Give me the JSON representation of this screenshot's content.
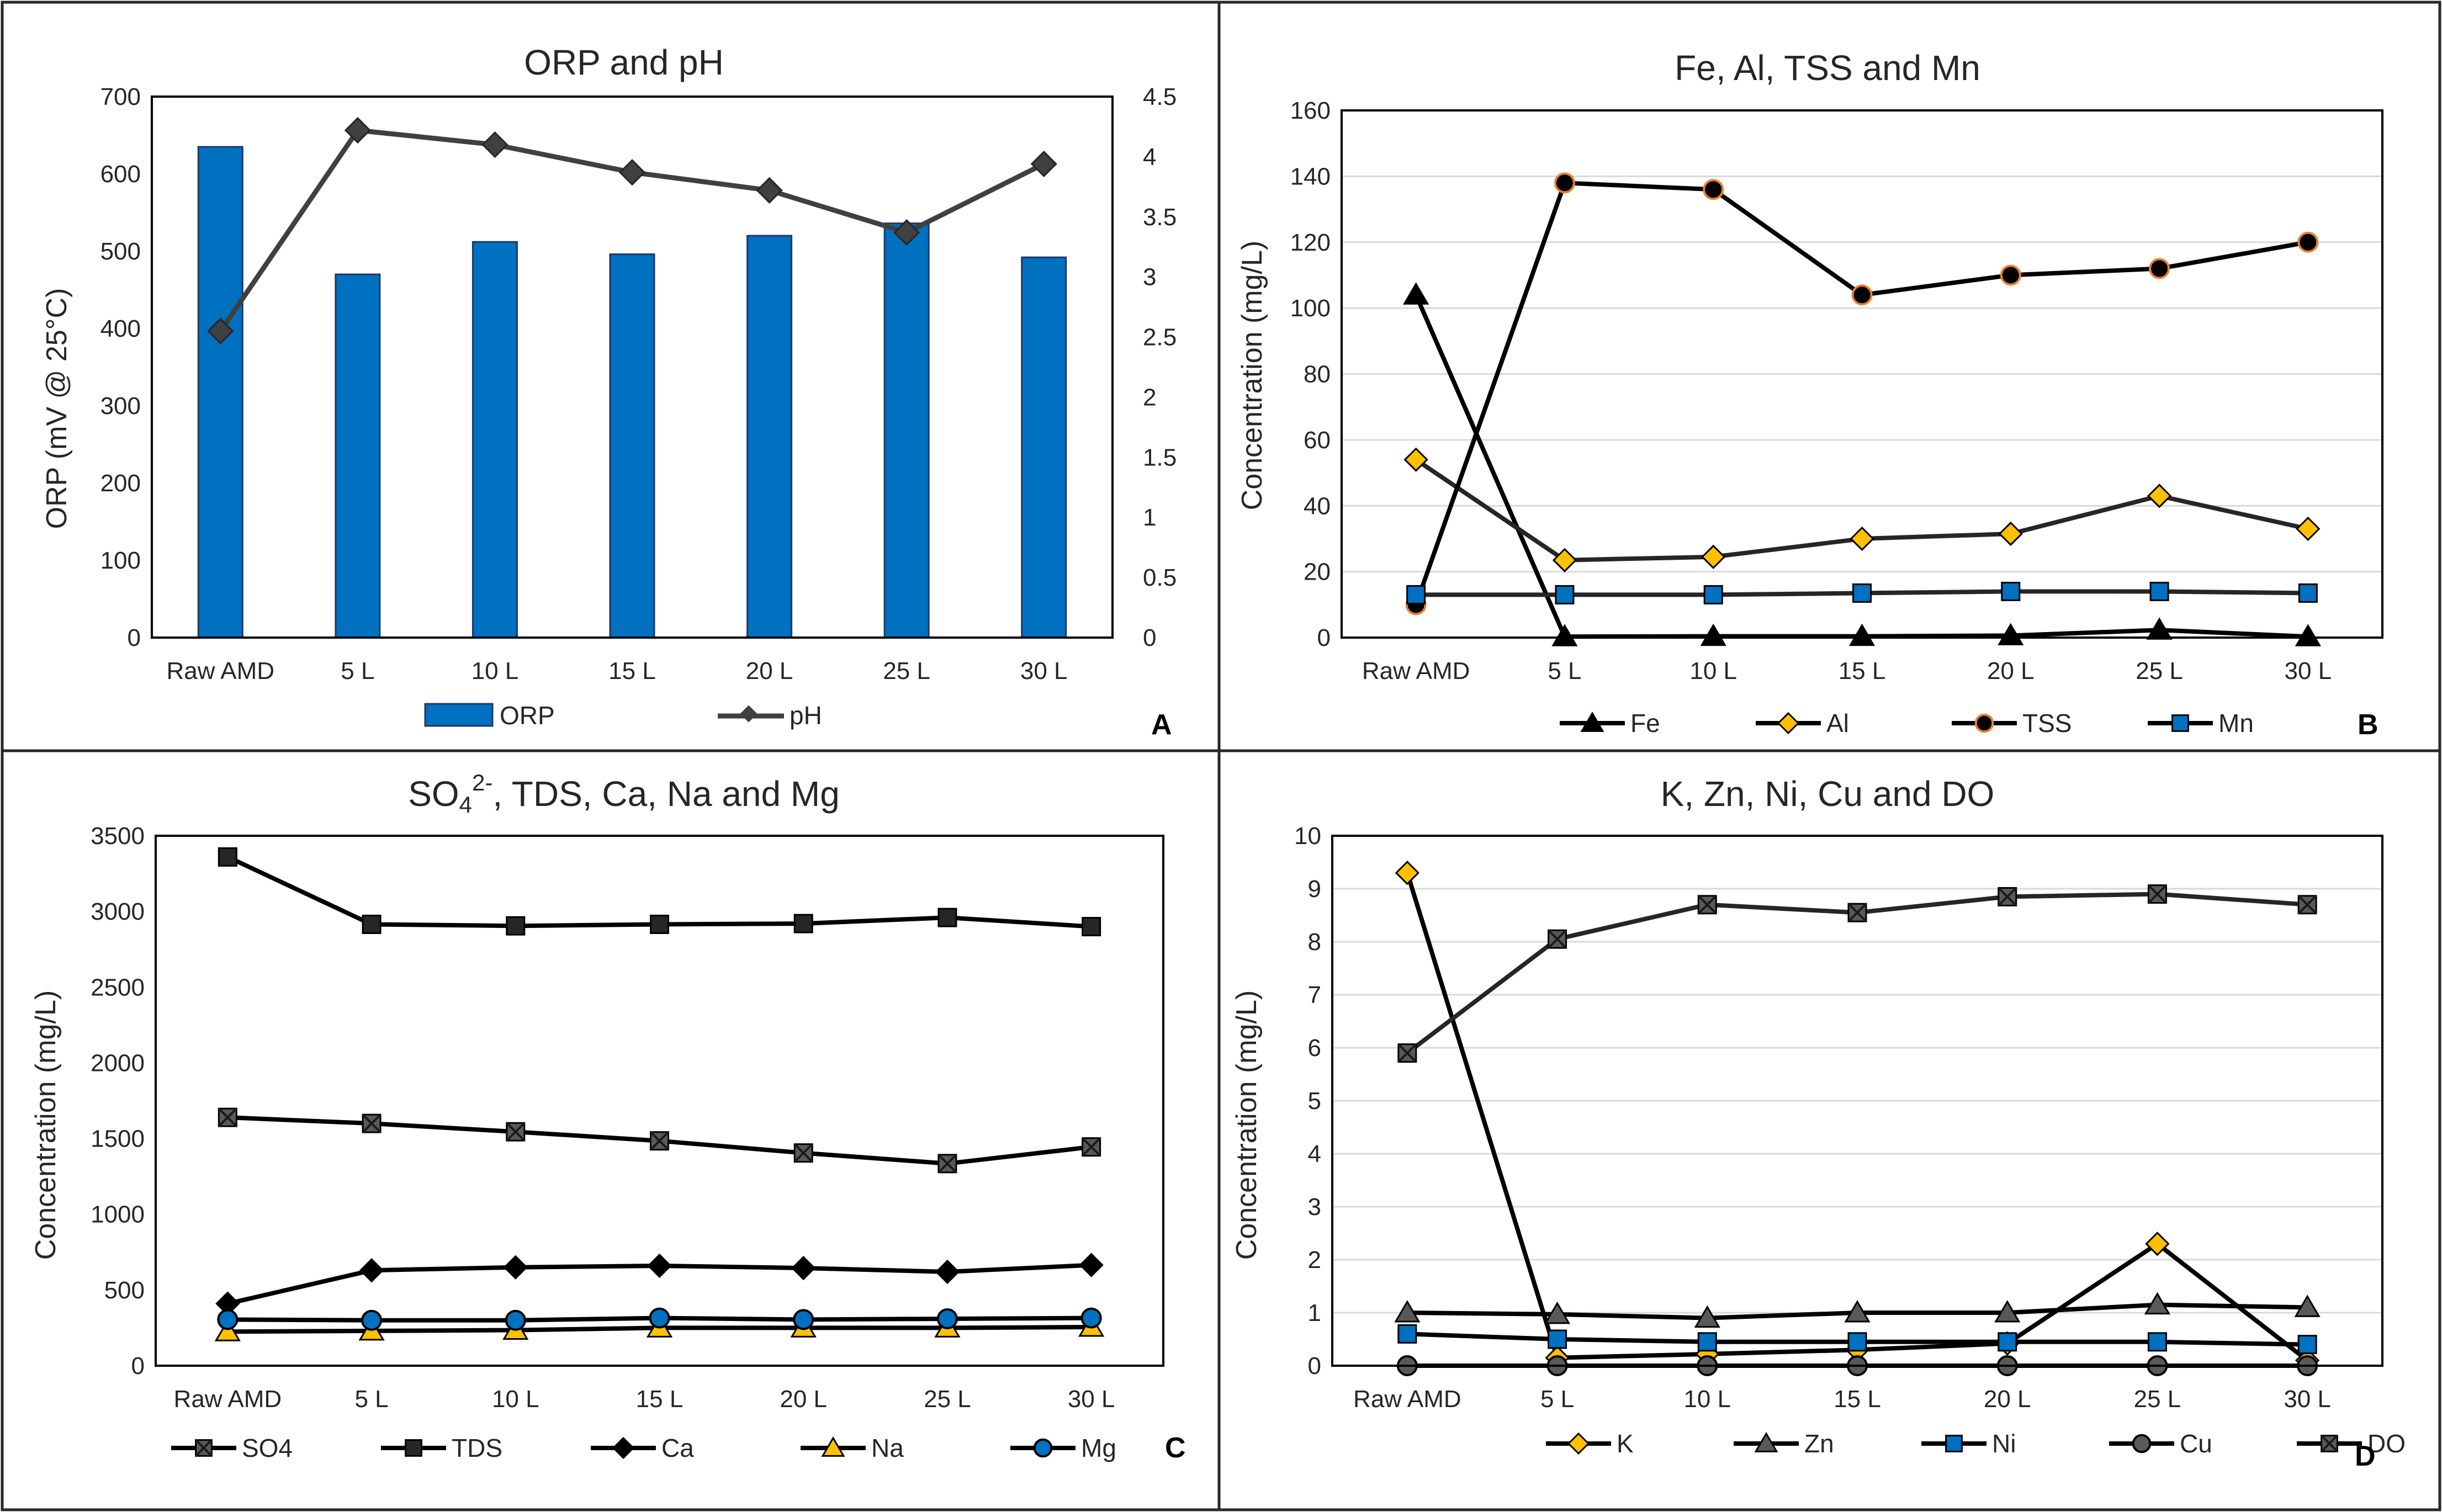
{
  "categories": [
    "Raw AMD",
    "5 L",
    "10 L",
    "15 L",
    "20 L",
    "25 L",
    "30 L"
  ],
  "chart_data": [
    {
      "panel": "A",
      "type": "bar+line",
      "title": "ORP and pH",
      "ylabel": "ORP (mV @ 25°C)",
      "ylim": [
        0,
        700
      ],
      "yticks": [
        0,
        100,
        200,
        300,
        400,
        500,
        600,
        700
      ],
      "y2lim": [
        0,
        4.5
      ],
      "y2ticks": [
        "0",
        "0.5",
        "1",
        "1.5",
        "2",
        "2.5",
        "3",
        "3.5",
        "4",
        "4.5"
      ],
      "legend_position": "bottom",
      "series": [
        {
          "name": "ORP",
          "kind": "bar",
          "axis": "left",
          "values": [
            635,
            470,
            512,
            496,
            520,
            536,
            492
          ]
        },
        {
          "name": "pH",
          "kind": "line",
          "axis": "right",
          "marker": "diamond",
          "values": [
            2.55,
            4.22,
            4.1,
            3.87,
            3.72,
            3.37,
            3.94
          ]
        }
      ]
    },
    {
      "panel": "B",
      "type": "line",
      "title": "Fe, Al, TSS and Mn",
      "ylabel": "Concentration (mg/L)",
      "ylim": [
        0,
        160
      ],
      "yticks": [
        0,
        20,
        40,
        60,
        80,
        100,
        120,
        140,
        160
      ],
      "legend_position": "bottom",
      "series": [
        {
          "name": "Fe",
          "marker": "triangle",
          "values": [
            104,
            0.3,
            0.4,
            0.4,
            0.6,
            2.3,
            0.3
          ]
        },
        {
          "name": "Al",
          "marker": "diamond",
          "values": [
            54,
            23.5,
            24.5,
            30,
            31.5,
            43,
            33
          ]
        },
        {
          "name": "TSS",
          "marker": "circle",
          "values": [
            10,
            138,
            136,
            104,
            110,
            112,
            120
          ]
        },
        {
          "name": "Mn",
          "marker": "square",
          "values": [
            13,
            13,
            13,
            13.5,
            14,
            14,
            13.5
          ]
        }
      ]
    },
    {
      "panel": "C",
      "type": "line",
      "title_main": "SO",
      "title_sub": "4",
      "title_sup": "2-",
      "title_rest": ", TDS, Ca, Na and Mg",
      "ylabel": "Concentration (mg/L)",
      "ylim": [
        0,
        3500
      ],
      "yticks": [
        0,
        500,
        1000,
        1500,
        2000,
        2500,
        3000,
        3500
      ],
      "legend_position": "bottom",
      "series": [
        {
          "name": "SO4",
          "marker": "xsquare",
          "values": [
            1640,
            1600,
            1545,
            1485,
            1405,
            1335,
            1445
          ]
        },
        {
          "name": "TDS",
          "marker": "square",
          "values": [
            3360,
            2915,
            2905,
            2915,
            2920,
            2960,
            2900
          ]
        },
        {
          "name": "Ca",
          "marker": "diamond",
          "values": [
            410,
            630,
            650,
            660,
            645,
            620,
            665
          ]
        },
        {
          "name": "Na",
          "marker": "triangle",
          "values": [
            225,
            230,
            235,
            250,
            250,
            250,
            255
          ]
        },
        {
          "name": "Mg",
          "marker": "circle",
          "values": [
            305,
            300,
            300,
            315,
            305,
            310,
            315
          ]
        }
      ]
    },
    {
      "panel": "D",
      "type": "line",
      "title": "K, Zn, Ni, Cu and DO",
      "ylabel": "Concentration (mg/L)",
      "ylim": [
        0,
        10
      ],
      "yticks": [
        0,
        1,
        2,
        3,
        4,
        5,
        6,
        7,
        8,
        9,
        10
      ],
      "legend_position": "bottom",
      "series": [
        {
          "name": "K",
          "marker": "diamond",
          "values": [
            9.3,
            0.15,
            0.22,
            0.3,
            0.42,
            2.3,
            0.1
          ]
        },
        {
          "name": "Zn",
          "marker": "triangle",
          "values": [
            1.0,
            0.97,
            0.9,
            1.0,
            1.0,
            1.15,
            1.1
          ]
        },
        {
          "name": "Ni",
          "marker": "square",
          "values": [
            0.6,
            0.5,
            0.45,
            0.45,
            0.45,
            0.45,
            0.4
          ]
        },
        {
          "name": "Cu",
          "marker": "circle",
          "values": [
            0.0,
            0.0,
            0.0,
            0.0,
            0.0,
            0.0,
            0.0
          ]
        },
        {
          "name": "DO",
          "marker": "xsquare",
          "values": [
            5.9,
            8.05,
            8.7,
            8.55,
            8.85,
            8.9,
            8.7
          ]
        }
      ]
    }
  ],
  "colors": {
    "bar_fill": "#0070c0",
    "bar_stroke": "#1f3864",
    "ph_line": "#404040",
    "line": "#000000",
    "grid": "#d9d9d9",
    "gold": "#ffc000",
    "orange": "#ed7d31",
    "blue": "#0070c0",
    "gray": "#595959",
    "dark": "#262626"
  }
}
